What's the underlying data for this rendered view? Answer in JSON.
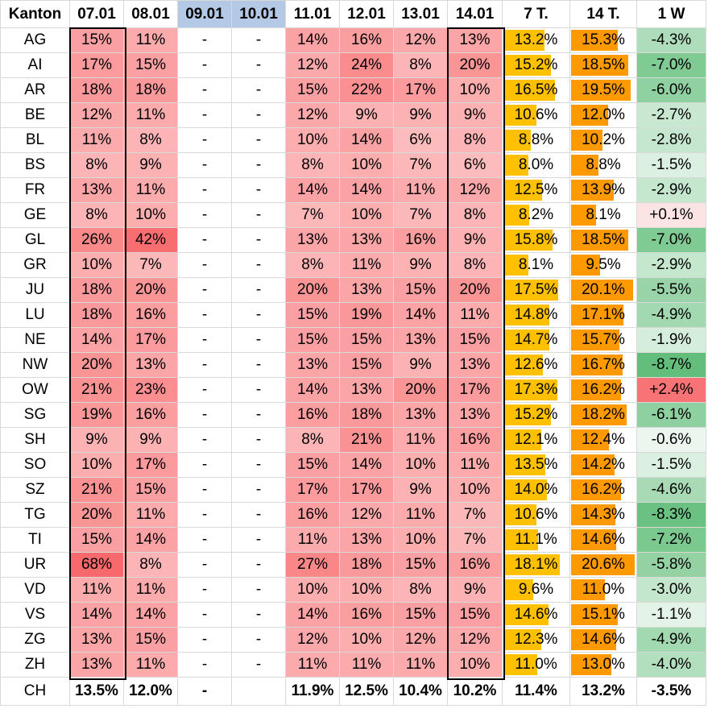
{
  "table": {
    "columns": [
      "Kanton",
      "07.01",
      "08.01",
      "09.01",
      "10.01",
      "11.01",
      "12.01",
      "13.01",
      "14.01",
      "7 T.",
      "14 T.",
      "1 W"
    ],
    "highlighted_columns": [
      "09.01",
      "10.01"
    ],
    "colors": {
      "header_highlight": "#b4c9e6",
      "bar_7t": "#ffc000",
      "bar_14t": "#ff9900",
      "heat_low": "#fff0f1",
      "heat_high": "#f8696b",
      "green_high": "#63be7b",
      "neg_low": "#f8696b"
    },
    "rows": [
      {
        "kanton": "AG",
        "d": [
          "15%",
          "11%",
          "-",
          "-",
          "14%",
          "16%",
          "12%",
          "13%"
        ],
        "t7": "13.2%",
        "t14": "15.3%",
        "w1": "-4.3%"
      },
      {
        "kanton": "AI",
        "d": [
          "17%",
          "15%",
          "-",
          "-",
          "12%",
          "24%",
          "8%",
          "20%"
        ],
        "t7": "15.2%",
        "t14": "18.5%",
        "w1": "-7.0%"
      },
      {
        "kanton": "AR",
        "d": [
          "18%",
          "18%",
          "-",
          "-",
          "15%",
          "22%",
          "17%",
          "10%"
        ],
        "t7": "16.5%",
        "t14": "19.5%",
        "w1": "-6.0%"
      },
      {
        "kanton": "BE",
        "d": [
          "12%",
          "11%",
          "-",
          "-",
          "12%",
          "9%",
          "9%",
          "9%"
        ],
        "t7": "10.6%",
        "t14": "12.0%",
        "w1": "-2.7%"
      },
      {
        "kanton": "BL",
        "d": [
          "11%",
          "8%",
          "-",
          "-",
          "10%",
          "14%",
          "6%",
          "8%"
        ],
        "t7": "8.8%",
        "t14": "10.2%",
        "w1": "-2.8%"
      },
      {
        "kanton": "BS",
        "d": [
          "8%",
          "9%",
          "-",
          "-",
          "8%",
          "10%",
          "7%",
          "6%"
        ],
        "t7": "8.0%",
        "t14": "8.8%",
        "w1": "-1.5%"
      },
      {
        "kanton": "FR",
        "d": [
          "13%",
          "11%",
          "-",
          "-",
          "14%",
          "14%",
          "11%",
          "12%"
        ],
        "t7": "12.5%",
        "t14": "13.9%",
        "w1": "-2.9%"
      },
      {
        "kanton": "GE",
        "d": [
          "8%",
          "10%",
          "-",
          "-",
          "7%",
          "10%",
          "7%",
          "8%"
        ],
        "t7": "8.2%",
        "t14": "8.1%",
        "w1": "+0.1%"
      },
      {
        "kanton": "GL",
        "d": [
          "26%",
          "42%",
          "-",
          "-",
          "13%",
          "13%",
          "16%",
          "9%"
        ],
        "t7": "15.8%",
        "t14": "18.5%",
        "w1": "-7.0%"
      },
      {
        "kanton": "GR",
        "d": [
          "10%",
          "7%",
          "-",
          "-",
          "8%",
          "11%",
          "9%",
          "8%"
        ],
        "t7": "8.1%",
        "t14": "9.5%",
        "w1": "-2.9%"
      },
      {
        "kanton": "JU",
        "d": [
          "18%",
          "20%",
          "-",
          "-",
          "20%",
          "13%",
          "15%",
          "20%"
        ],
        "t7": "17.5%",
        "t14": "20.1%",
        "w1": "-5.5%"
      },
      {
        "kanton": "LU",
        "d": [
          "18%",
          "16%",
          "-",
          "-",
          "15%",
          "19%",
          "14%",
          "11%"
        ],
        "t7": "14.8%",
        "t14": "17.1%",
        "w1": "-4.9%"
      },
      {
        "kanton": "NE",
        "d": [
          "14%",
          "17%",
          "-",
          "-",
          "15%",
          "15%",
          "13%",
          "15%"
        ],
        "t7": "14.7%",
        "t14": "15.7%",
        "w1": "-1.9%"
      },
      {
        "kanton": "NW",
        "d": [
          "20%",
          "13%",
          "-",
          "-",
          "13%",
          "15%",
          "9%",
          "13%"
        ],
        "t7": "12.6%",
        "t14": "16.7%",
        "w1": "-8.7%"
      },
      {
        "kanton": "OW",
        "d": [
          "21%",
          "23%",
          "-",
          "-",
          "14%",
          "13%",
          "20%",
          "17%"
        ],
        "t7": "17.3%",
        "t14": "16.2%",
        "w1": "+2.4%"
      },
      {
        "kanton": "SG",
        "d": [
          "19%",
          "16%",
          "-",
          "-",
          "16%",
          "18%",
          "13%",
          "13%"
        ],
        "t7": "15.2%",
        "t14": "18.2%",
        "w1": "-6.1%"
      },
      {
        "kanton": "SH",
        "d": [
          "9%",
          "9%",
          "-",
          "-",
          "8%",
          "21%",
          "11%",
          "16%"
        ],
        "t7": "12.1%",
        "t14": "12.4%",
        "w1": "-0.6%"
      },
      {
        "kanton": "SO",
        "d": [
          "10%",
          "17%",
          "-",
          "-",
          "15%",
          "14%",
          "10%",
          "11%"
        ],
        "t7": "13.5%",
        "t14": "14.2%",
        "w1": "-1.5%"
      },
      {
        "kanton": "SZ",
        "d": [
          "21%",
          "15%",
          "-",
          "-",
          "17%",
          "17%",
          "9%",
          "10%"
        ],
        "t7": "14.0%",
        "t14": "16.2%",
        "w1": "-4.6%"
      },
      {
        "kanton": "TG",
        "d": [
          "20%",
          "11%",
          "-",
          "-",
          "16%",
          "12%",
          "11%",
          "7%"
        ],
        "t7": "10.6%",
        "t14": "14.3%",
        "w1": "-8.3%"
      },
      {
        "kanton": "TI",
        "d": [
          "15%",
          "14%",
          "-",
          "-",
          "11%",
          "13%",
          "10%",
          "7%"
        ],
        "t7": "11.1%",
        "t14": "14.6%",
        "w1": "-7.2%"
      },
      {
        "kanton": "UR",
        "d": [
          "68%",
          "8%",
          "-",
          "-",
          "27%",
          "18%",
          "15%",
          "16%"
        ],
        "t7": "18.1%",
        "t14": "20.6%",
        "w1": "-5.8%"
      },
      {
        "kanton": "VD",
        "d": [
          "11%",
          "11%",
          "-",
          "-",
          "10%",
          "10%",
          "8%",
          "9%"
        ],
        "t7": "9.6%",
        "t14": "11.0%",
        "w1": "-3.0%"
      },
      {
        "kanton": "VS",
        "d": [
          "14%",
          "14%",
          "-",
          "-",
          "14%",
          "16%",
          "15%",
          "15%"
        ],
        "t7": "14.6%",
        "t14": "15.1%",
        "w1": "-1.1%"
      },
      {
        "kanton": "ZG",
        "d": [
          "13%",
          "15%",
          "-",
          "-",
          "12%",
          "10%",
          "12%",
          "12%"
        ],
        "t7": "12.3%",
        "t14": "14.6%",
        "w1": "-4.9%"
      },
      {
        "kanton": "ZH",
        "d": [
          "13%",
          "11%",
          "-",
          "-",
          "11%",
          "11%",
          "11%",
          "10%"
        ],
        "t7": "11.0%",
        "t14": "13.0%",
        "w1": "-4.0%"
      }
    ],
    "total": {
      "kanton": "CH",
      "d": [
        "13.5%",
        "12.0%",
        "-",
        "",
        "11.9%",
        "12.5%",
        "10.4%",
        "10.2%"
      ],
      "t7": "11.4%",
      "t14": "13.2%",
      "w1": "-3.5%"
    }
  }
}
